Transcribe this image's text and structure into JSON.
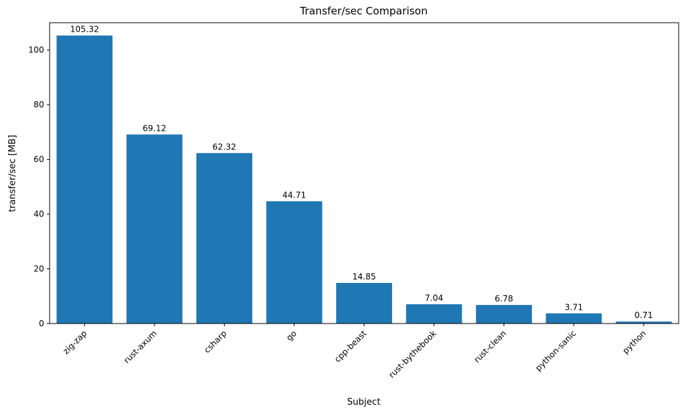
{
  "chart": {
    "title": "Transfer/sec Comparison",
    "xlabel": "Subject",
    "ylabel": "transfer/sec [MB]"
  },
  "chart_data": {
    "type": "bar",
    "title": "Transfer/sec Comparison",
    "xlabel": "Subject",
    "ylabel": "transfer/sec [MB]",
    "categories": [
      "zig-zap",
      "rust-axum",
      "csharp",
      "go",
      "cpp-beast",
      "rust-bythebook",
      "rust-clean",
      "python-sanic",
      "python"
    ],
    "values": [
      105.32,
      69.12,
      62.32,
      44.71,
      14.85,
      7.04,
      6.78,
      3.71,
      0.71
    ],
    "value_labels": [
      "105.32",
      "69.12",
      "62.32",
      "44.71",
      "14.85",
      "7.04",
      "6.78",
      "3.71",
      "0.71"
    ],
    "yticks": [
      0,
      20,
      40,
      60,
      80,
      100
    ],
    "ylim": [
      0,
      110
    ],
    "bar_color": "#1f77b4",
    "axis_color": "#000000",
    "grid": false,
    "legend_position": "none"
  }
}
